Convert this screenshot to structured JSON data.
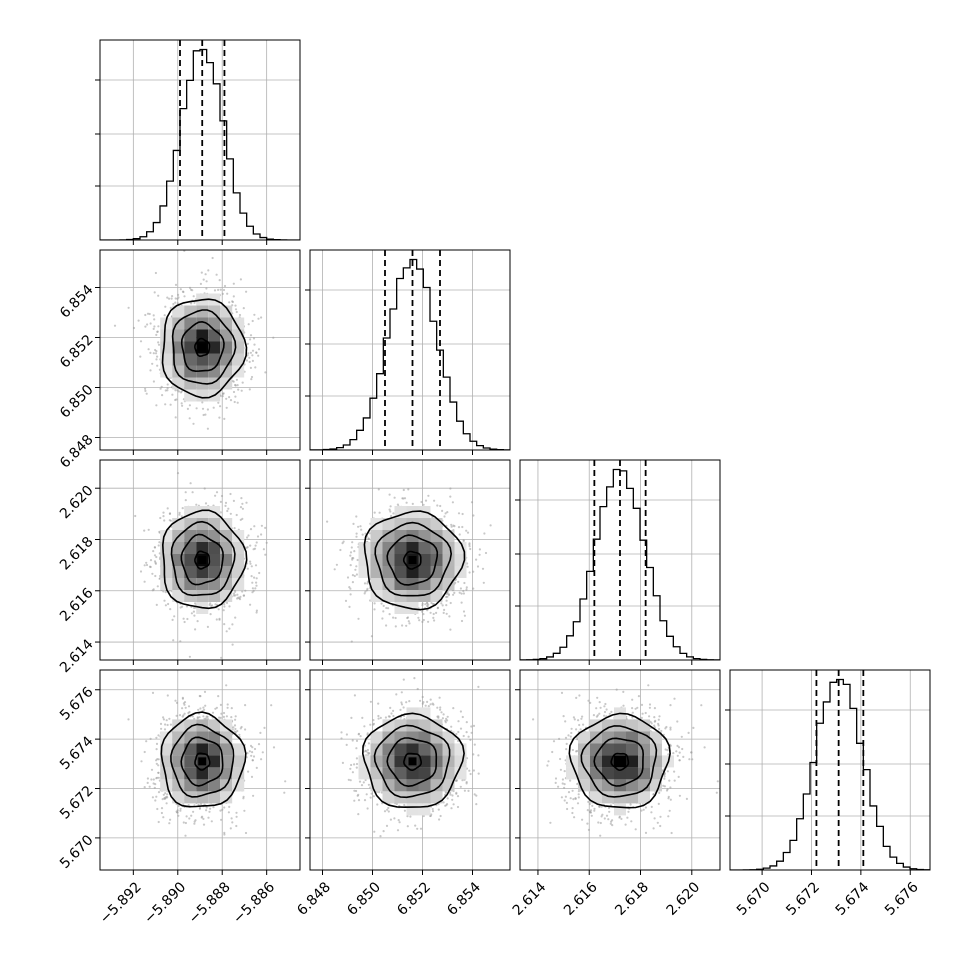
{
  "chart_data": {
    "type": "corner",
    "parameters": [
      {
        "range": [
          -5.8935,
          -5.8845
        ],
        "ticks": [
          -5.892,
          -5.89,
          -5.888,
          -5.886
        ],
        "tick_labels": [
          "−5.892",
          "−5.890",
          "−5.888",
          "−5.886"
        ],
        "quantiles": [
          -5.8899,
          -5.8889,
          -5.8879
        ],
        "mean": -5.8889,
        "sd": 0.00093
      },
      {
        "range": [
          6.8475,
          6.8555
        ],
        "ticks": [
          6.848,
          6.85,
          6.852,
          6.854
        ],
        "tick_labels": [
          "6.848",
          "6.850",
          "6.852",
          "6.854"
        ],
        "quantiles": [
          6.8505,
          6.8516,
          6.8527
        ],
        "mean": 6.8516,
        "sd": 0.00098
      },
      {
        "range": [
          2.6133,
          2.6211
        ],
        "ticks": [
          2.614,
          2.616,
          2.618,
          2.62
        ],
        "tick_labels": [
          "2.614",
          "2.616",
          "2.618",
          "2.620"
        ],
        "quantiles": [
          2.6162,
          2.6172,
          2.6182
        ],
        "mean": 2.6172,
        "sd": 0.00095
      },
      {
        "range": [
          5.6687,
          5.6768
        ],
        "ticks": [
          5.67,
          5.672,
          5.674,
          5.676
        ],
        "tick_labels": [
          "5.670",
          "5.672",
          "5.674",
          "5.676"
        ],
        "quantiles": [
          5.6722,
          5.6731,
          5.6741
        ],
        "mean": 5.6731,
        "sd": 0.00095
      }
    ],
    "quantile_levels": [
      0.16,
      0.5,
      0.84
    ],
    "grid": true,
    "legend": "none"
  }
}
